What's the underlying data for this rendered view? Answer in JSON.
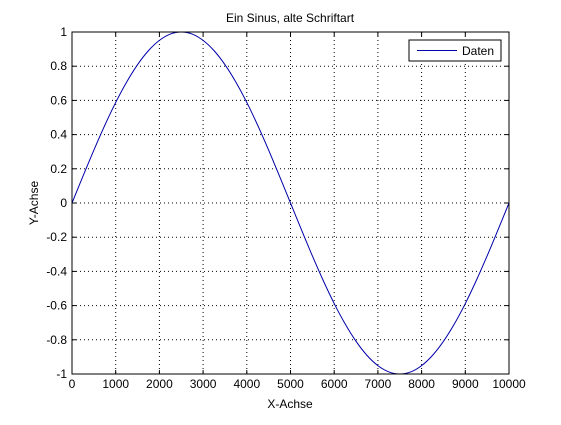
{
  "chart_data": {
    "type": "line",
    "title": "Ein Sinus, alte Schriftart",
    "xlabel": "X-Achse",
    "ylabel": "Y-Achse",
    "xlim": [
      0,
      10000
    ],
    "ylim": [
      -1,
      1
    ],
    "x_ticks": [
      0,
      1000,
      2000,
      3000,
      4000,
      5000,
      6000,
      7000,
      8000,
      9000,
      10000
    ],
    "x_tick_labels": [
      "0",
      "1000",
      "2000",
      "3000",
      "4000",
      "5000",
      "6000",
      "7000",
      "8000",
      "9000",
      "10000"
    ],
    "y_ticks": [
      1,
      0.8,
      0.6,
      0.4,
      0.2,
      0,
      -0.2,
      -0.4,
      -0.6,
      -0.8,
      -1
    ],
    "y_tick_labels": [
      "1",
      "0.8",
      "0.6",
      "0.4",
      "0.2",
      "0",
      "-0.2",
      "-0.4",
      "-0.6",
      "-0.8",
      "-1"
    ],
    "grid": true,
    "grid_style": "dotted",
    "legend_position": "top-right",
    "series": [
      {
        "name": "Daten",
        "color": "#0000aa",
        "x": [
          0,
          250,
          500,
          750,
          1000,
          1250,
          1500,
          1750,
          2000,
          2250,
          2500,
          2750,
          3000,
          3250,
          3500,
          3750,
          4000,
          4250,
          4500,
          4750,
          5000,
          5250,
          5500,
          5750,
          6000,
          6250,
          6500,
          6750,
          7000,
          7250,
          7500,
          7750,
          8000,
          8250,
          8500,
          8750,
          9000,
          9250,
          9500,
          9750,
          10000
        ],
        "y": [
          0,
          0.156,
          0.309,
          0.454,
          0.588,
          0.707,
          0.809,
          0.891,
          0.951,
          0.988,
          1,
          0.988,
          0.951,
          0.891,
          0.809,
          0.707,
          0.588,
          0.454,
          0.309,
          0.156,
          0,
          -0.156,
          -0.309,
          -0.454,
          -0.588,
          -0.707,
          -0.809,
          -0.891,
          -0.951,
          -0.988,
          -1,
          -0.988,
          -0.951,
          -0.891,
          -0.809,
          -0.707,
          -0.588,
          -0.454,
          -0.309,
          -0.156,
          0
        ]
      }
    ]
  }
}
